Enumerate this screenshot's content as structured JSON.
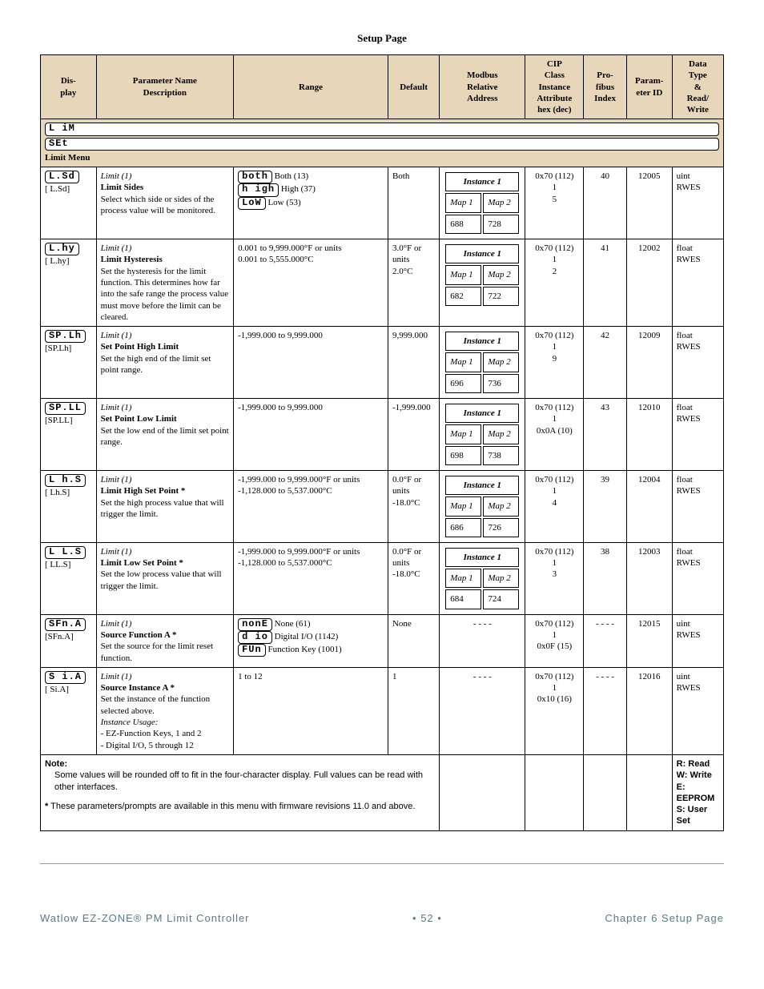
{
  "page_title": "Setup Page",
  "headers": {
    "display": "Dis-\nplay",
    "param": "Parameter Name\nDescription",
    "range": "Range",
    "default": "Default",
    "modbus": "Modbus\nRelative\nAddress",
    "cip": "CIP\nClass\nInstance\nAttribute\nhex (dec)",
    "profibus": "Pro-\nfibus\nIndex",
    "paramid": "Param-\neter ID",
    "datatype": "Data\nType\n&\nRead/\nWrite"
  },
  "menu": {
    "seg1": "L iM",
    "seg2": "SEt",
    "label": "Limit Menu"
  },
  "rows": [
    {
      "seg": "L.Sd",
      "disp": "[ L.Sd]",
      "group": "Limit (1)",
      "name": "Limit Sides",
      "desc": "Select which side or sides of the process value will be monitored.",
      "range_segs": [
        {
          "seg": "both",
          "label": " Both (13)"
        },
        {
          "seg": "h igh",
          "label": " High (37)"
        },
        {
          "seg": "LoW",
          "label": " Low (53)"
        }
      ],
      "default": "Both",
      "modbus": {
        "instance": "Instance 1",
        "map1": "688",
        "map2": "728"
      },
      "cip": "0x70 (112)\n1\n5",
      "profibus": "40",
      "paramid": "12005",
      "datatype": "uint\nRWES"
    },
    {
      "seg": "L.hy",
      "disp": "[ L.hy]",
      "group": "Limit (1)",
      "name": "Limit Hysteresis",
      "desc": "Set the hysteresis for the limit function. This determines how far into the safe range the process value must move before the limit can be cleared.",
      "range_text": "0.001 to 9,999.000°F or units\n0.001 to 5,555.000°C",
      "default": "3.0°F or units\n2.0°C",
      "modbus": {
        "instance": "Instance 1",
        "map1": "682",
        "map2": "722"
      },
      "cip": "0x70 (112)\n1\n2",
      "profibus": "41",
      "paramid": "12002",
      "datatype": "float\nRWES"
    },
    {
      "seg": "SP.Lh",
      "disp": "[SP.Lh]",
      "group": "Limit (1)",
      "name": "Set Point High Limit",
      "desc": "Set the high end of the limit set point range.",
      "range_text": "-1,999.000 to 9,999.000",
      "default": "9,999.000",
      "modbus": {
        "instance": "Instance 1",
        "map1": "696",
        "map2": "736"
      },
      "cip": "0x70 (112)\n1\n9",
      "profibus": "42",
      "paramid": "12009",
      "datatype": "float\nRWES"
    },
    {
      "seg": "SP.LL",
      "disp": "[SP.LL]",
      "group": "Limit (1)",
      "name": "Set Point Low Limit",
      "desc": "Set the low end of the limit set point range.",
      "range_text": "-1,999.000 to 9,999.000",
      "default": "-1,999.000",
      "modbus": {
        "instance": "Instance 1",
        "map1": "698",
        "map2": "738"
      },
      "cip": "0x70 (112)\n1\n0x0A (10)",
      "profibus": "43",
      "paramid": "12010",
      "datatype": "float\nRWES"
    },
    {
      "seg": "L h.S",
      "disp": "[ Lh.S]",
      "group": "Limit (1)",
      "name": "Limit High Set Point *",
      "desc": "Set the high process value that will trigger the limit.",
      "range_text": "-1,999.000 to 9,999.000°F or units\n-1,128.000 to 5,537.000°C",
      "default": "0.0°F or units\n-18.0°C",
      "modbus": {
        "instance": "Instance 1",
        "map1": "686",
        "map2": "726"
      },
      "cip": "0x70 (112)\n1\n4",
      "profibus": "39",
      "paramid": "12004",
      "datatype": "float\nRWES"
    },
    {
      "seg": "L L.S",
      "disp": "[ LL.S]",
      "group": "Limit (1)",
      "name": "Limit Low Set Point *",
      "desc": "Set the low process value that will trigger the limit.",
      "range_text": "-1,999.000 to 9,999.000°F or units\n-1,128.000 to 5,537.000°C",
      "default": "0.0°F or units\n-18.0°C",
      "modbus": {
        "instance": "Instance 1",
        "map1": "684",
        "map2": "724"
      },
      "cip": "0x70 (112)\n1\n3",
      "profibus": "38",
      "paramid": "12003",
      "datatype": "float\nRWES"
    },
    {
      "seg": "SFn.A",
      "disp": "[SFn.A]",
      "group": "Limit (1)",
      "name": "Source Function A *",
      "desc": "Set the source for the limit reset function.",
      "range_segs": [
        {
          "seg": "nonE",
          "label": " None (61)"
        },
        {
          "seg": "d io",
          "label": " Digital I/O (1142)"
        },
        {
          "seg": "FUn",
          "label": " Function Key (1001)"
        }
      ],
      "default": "None",
      "modbus_dash": "- - - -",
      "cip": "0x70 (112)\n1\n0x0F (15)",
      "profibus": "- - - -",
      "paramid": "12015",
      "datatype": "uint\nRWES"
    },
    {
      "seg": "S i.A",
      "disp": "[ Si.A]",
      "group": "Limit (1)",
      "name": "Source Instance A *",
      "desc": "Set the instance of the function selected above.",
      "desc2_title": "Instance Usage:",
      "desc2_items": [
        "EZ-Function Keys, 1 and 2",
        "Digital I/O, 5 through 12"
      ],
      "range_text": "1 to 12",
      "default": "1",
      "modbus_dash": "- - - -",
      "cip": "0x70 (112)\n1\n0x10 (16)",
      "profibus": "- - - -",
      "paramid": "12016",
      "datatype": "uint\nRWES"
    }
  ],
  "note": {
    "title": "Note:",
    "text1": "Some values will be rounded off to fit in the four-character display. Full values can be read with other interfaces.",
    "text2": "These parameters/prompts are available in this menu with firmware revisions 11.0 and above."
  },
  "legend": {
    "r": "R: Read",
    "w": "W: Write",
    "e": "E: EEPROM",
    "s": "S: User Set"
  },
  "footer": {
    "left": "Watlow EZ-ZONE® PM Limit Controller",
    "mid": "•  52  •",
    "right": "Chapter 6 Setup Page"
  }
}
